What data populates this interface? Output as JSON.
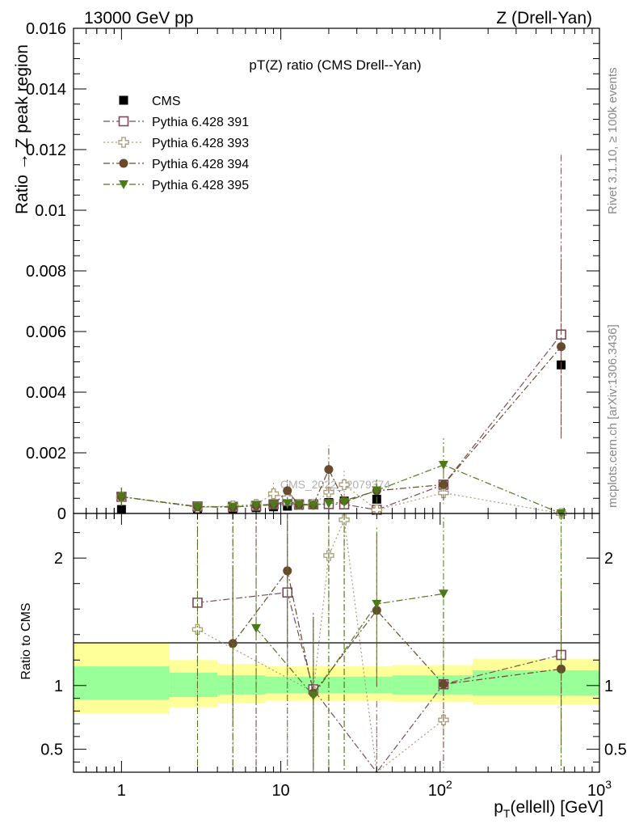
{
  "header": {
    "left": "13000 GeV pp",
    "right": "Z (Drell-Yan)"
  },
  "side_labels": {
    "rivet": "Rivet 3.1.10, ≥ 100k events",
    "mcplots": "mcplots.cern.ch [arXiv:1306.3436]"
  },
  "watermark": "CMS_2022_I2079374",
  "colors": {
    "cms": "#000000",
    "p391": "#7b4a5b",
    "p393": "#a99a7a",
    "p394": "#6a4a2c",
    "p395": "#4c7a1a",
    "band_outer": "#ffff99",
    "band_inner": "#99ff99"
  },
  "chart_data": [
    {
      "type": "scatter",
      "title": "pT(Z) ratio (CMS Drell--Yan)",
      "ylabel": "Ratio → Z peak region",
      "xscale": "log",
      "xlim": [
        0.5,
        1000
      ],
      "ylim": [
        0,
        0.016
      ],
      "yticks": [
        "0",
        "0.002",
        "0.004",
        "0.006",
        "0.008",
        "0.01",
        "0.012",
        "0.014",
        "0.016"
      ],
      "legend_position": "top-left",
      "x": [
        1,
        3,
        5,
        7,
        9,
        11,
        13,
        16,
        20,
        25,
        40,
        105,
        575
      ],
      "series": [
        {
          "name": "CMS",
          "marker": "filled-square",
          "values": [
            0.00013,
            0.00014,
            0.00016,
            0.00019,
            0.00022,
            0.00024,
            0.00027,
            0.00031,
            0.00036,
            0.00041,
            0.00047,
            0.00093,
            0.0049
          ]
        },
        {
          "name": "Pythia 6.428 391",
          "marker": "open-square",
          "line": "dash-dot",
          "values": [
            0.00055,
            0.00023,
            0.00022,
            0.00025,
            0.0003,
            0.00041,
            0.0003,
            0.0003,
            0.00031,
            0.0003,
            0.00012,
            0.00095,
            0.0059
          ]
        },
        {
          "name": "Pythia 6.428 393",
          "marker": "open-cross",
          "line": "dotted",
          "values": [
            0.00055,
            0.0002,
            0.00025,
            0.0003,
            0.00065,
            0.00052,
            0.0003,
            0.0003,
            0.0007,
            0.00095,
            0.00012,
            0.00068,
            0.0
          ]
        },
        {
          "name": "Pythia 6.428 394",
          "marker": "filled-circle",
          "line": "dash-dot",
          "values": [
            0.00055,
            0.00022,
            0.00021,
            0.00026,
            0.00028,
            0.00075,
            0.00028,
            0.00028,
            0.00145,
            0.00042,
            0.00075,
            0.00095,
            0.0055
          ]
        },
        {
          "name": "Pythia 6.428 395",
          "marker": "filled-triangle-down",
          "line": "dash-dot",
          "values": [
            0.00055,
            0.00022,
            0.00021,
            0.00028,
            0.0003,
            0.00033,
            0.0003,
            0.00028,
            0.00033,
            0.00037,
            0.00076,
            0.0016,
            0.0
          ]
        }
      ]
    },
    {
      "type": "scatter",
      "ylabel": "Ratio to CMS",
      "xlabel": "p_T(ellell) [GeV]",
      "xscale": "log",
      "xlim": [
        0.5,
        1000
      ],
      "ylim": [
        0.32,
        2.35
      ],
      "xticks": [
        "1",
        "10",
        "10^2",
        "10^3"
      ],
      "yticks": [
        "0.5",
        "1",
        "2"
      ],
      "x": [
        3,
        5,
        7,
        11,
        16,
        20,
        25,
        40,
        105,
        575
      ],
      "series": [
        {
          "name": "Pythia 6.428 391",
          "values": [
            1.65,
            null,
            null,
            1.73,
            0.97,
            null,
            null,
            0.28,
            1.01,
            1.24
          ]
        },
        {
          "name": "Pythia 6.428 393",
          "values": [
            1.44,
            null,
            null,
            null,
            0.95,
            2.02,
            2.3,
            0.27,
            0.73,
            null
          ]
        },
        {
          "name": "Pythia 6.428 394",
          "values": [
            null,
            1.33,
            null,
            1.9,
            0.94,
            null,
            null,
            1.59,
            1.01,
            1.13
          ]
        },
        {
          "name": "Pythia 6.428 395",
          "values": [
            null,
            null,
            1.45,
            null,
            0.92,
            null,
            null,
            1.64,
            1.72,
            null
          ]
        }
      ],
      "uncertainty_bands": [
        {
          "x_edges": [
            0.5,
            2,
            4,
            8,
            20,
            50,
            160,
            1000
          ],
          "outer": [
            [
              0.78,
              1.33
            ],
            [
              0.83,
              1.2
            ],
            [
              0.86,
              1.17
            ],
            [
              0.88,
              1.15
            ],
            [
              0.88,
              1.15
            ],
            [
              0.87,
              1.16
            ],
            [
              0.85,
              1.21
            ]
          ],
          "inner": [
            [
              0.89,
              1.15
            ],
            [
              0.91,
              1.1
            ],
            [
              0.93,
              1.08
            ],
            [
              0.94,
              1.07
            ],
            [
              0.94,
              1.07
            ],
            [
              0.93,
              1.08
            ],
            [
              0.92,
              1.12
            ]
          ]
        }
      ]
    }
  ]
}
